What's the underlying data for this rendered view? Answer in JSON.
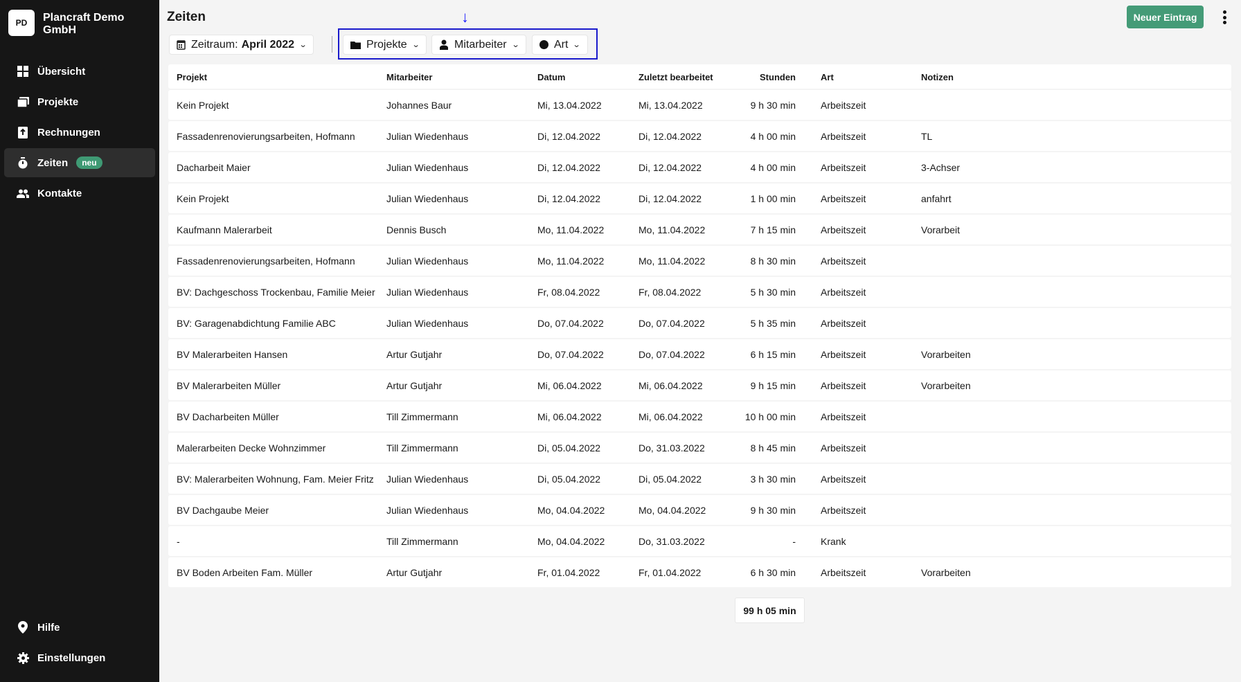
{
  "sidebar": {
    "logo": "PD",
    "company": "Plancraft Demo GmbH",
    "items": [
      {
        "label": "Übersicht",
        "icon": "grid-icon"
      },
      {
        "label": "Projekte",
        "icon": "folders-icon"
      },
      {
        "label": "Rechnungen",
        "icon": "invoice-icon"
      },
      {
        "label": "Zeiten",
        "icon": "stopwatch-icon",
        "badge": "neu",
        "active": true
      },
      {
        "label": "Kontakte",
        "icon": "people-icon"
      }
    ],
    "bottom": [
      {
        "label": "Hilfe",
        "icon": "location-pin-icon"
      },
      {
        "label": "Einstellungen",
        "icon": "gear-icon"
      }
    ]
  },
  "header": {
    "title": "Zeiten",
    "new_entry": "Neuer Eintrag"
  },
  "filters": {
    "zeitraum_label": "Zeitraum:",
    "zeitraum_value": "April 2022",
    "projekte": "Projekte",
    "mitarbeiter": "Mitarbeiter",
    "art": "Art"
  },
  "colors": {
    "accent": "#449b77",
    "sidebar": "#161616",
    "highlight": "#1a1acc"
  },
  "table": {
    "columns": [
      "Projekt",
      "Mitarbeiter",
      "Datum",
      "Zuletzt bearbeitet",
      "Stunden",
      "Art",
      "Notizen"
    ],
    "rows": [
      [
        "Kein Projekt",
        "Johannes Baur",
        "Mi, 13.04.2022",
        "Mi, 13.04.2022",
        "9 h 30 min",
        "Arbeitszeit",
        ""
      ],
      [
        "Fassadenrenovierungsarbeiten, Hofmann",
        "Julian Wiedenhaus",
        "Di, 12.04.2022",
        "Di, 12.04.2022",
        "4 h 00 min",
        "Arbeitszeit",
        "TL"
      ],
      [
        "Dacharbeit Maier",
        "Julian Wiedenhaus",
        "Di, 12.04.2022",
        "Di, 12.04.2022",
        "4 h 00 min",
        "Arbeitszeit",
        "3-Achser"
      ],
      [
        "Kein Projekt",
        "Julian Wiedenhaus",
        "Di, 12.04.2022",
        "Di, 12.04.2022",
        "1 h 00 min",
        "Arbeitszeit",
        "anfahrt"
      ],
      [
        "Kaufmann Malerarbeit",
        "Dennis Busch",
        "Mo, 11.04.2022",
        "Mo, 11.04.2022",
        "7 h 15 min",
        "Arbeitszeit",
        "Vorarbeit"
      ],
      [
        "Fassadenrenovierungsarbeiten, Hofmann",
        "Julian Wiedenhaus",
        "Mo, 11.04.2022",
        "Mo, 11.04.2022",
        "8 h 30 min",
        "Arbeitszeit",
        ""
      ],
      [
        "BV: Dachgeschoss Trockenbau, Familie Meier",
        "Julian Wiedenhaus",
        "Fr, 08.04.2022",
        "Fr, 08.04.2022",
        "5 h 30 min",
        "Arbeitszeit",
        ""
      ],
      [
        "BV: Garagenabdichtung Familie ABC",
        "Julian Wiedenhaus",
        "Do, 07.04.2022",
        "Do, 07.04.2022",
        "5 h 35 min",
        "Arbeitszeit",
        ""
      ],
      [
        "BV Malerarbeiten Hansen",
        "Artur Gutjahr",
        "Do, 07.04.2022",
        "Do, 07.04.2022",
        "6 h 15 min",
        "Arbeitszeit",
        "Vorarbeiten"
      ],
      [
        "BV Malerarbeiten Müller",
        "Artur Gutjahr",
        "Mi, 06.04.2022",
        "Mi, 06.04.2022",
        "9 h 15 min",
        "Arbeitszeit",
        "Vorarbeiten"
      ],
      [
        "BV Dacharbeiten Müller",
        "Till Zimmermann",
        "Mi, 06.04.2022",
        "Mi, 06.04.2022",
        "10 h 00 min",
        "Arbeitszeit",
        ""
      ],
      [
        "Malerarbeiten Decke Wohnzimmer",
        "Till Zimmermann",
        "Di, 05.04.2022",
        "Do, 31.03.2022",
        "8 h 45 min",
        "Arbeitszeit",
        ""
      ],
      [
        "BV: Malerarbeiten Wohnung, Fam. Meier Fritz",
        "Julian Wiedenhaus",
        "Di, 05.04.2022",
        "Di, 05.04.2022",
        "3 h 30 min",
        "Arbeitszeit",
        ""
      ],
      [
        "BV Dachgaube Meier",
        "Julian Wiedenhaus",
        "Mo, 04.04.2022",
        "Mo, 04.04.2022",
        "9 h 30 min",
        "Arbeitszeit",
        ""
      ],
      [
        "-",
        "Till Zimmermann",
        "Mo, 04.04.2022",
        "Do, 31.03.2022",
        "-",
        "Krank",
        ""
      ],
      [
        "BV Boden Arbeiten Fam. Müller",
        "Artur Gutjahr",
        "Fr, 01.04.2022",
        "Fr, 01.04.2022",
        "6 h 30 min",
        "Arbeitszeit",
        "Vorarbeiten"
      ]
    ]
  },
  "total": "99 h 05 min"
}
